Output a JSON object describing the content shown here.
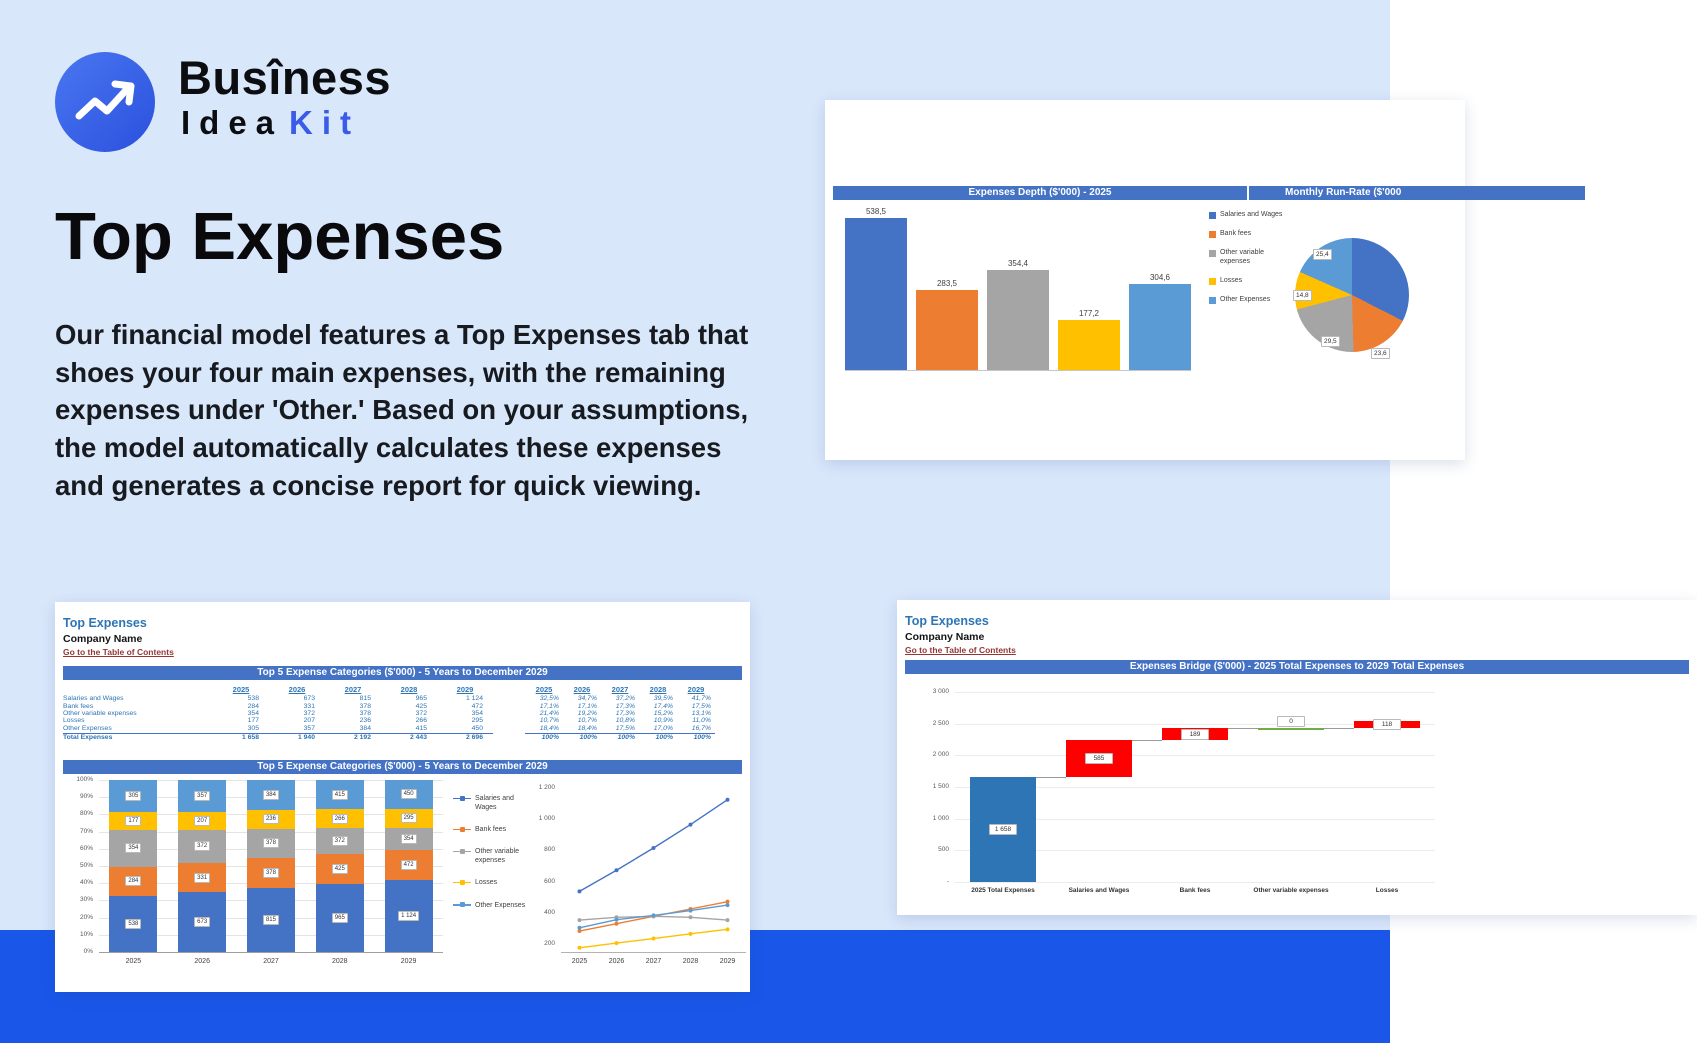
{
  "logo": {
    "brand_line1": "Busîness",
    "brand_line2_a": "Idea",
    "brand_line2_b": "Kit",
    "accent_color": "#3A5BE9"
  },
  "hero": {
    "title": "Top Expenses",
    "description": "Our financial model features a Top Expenses tab that shoes your four main expenses, with the remaining expenses under 'Other.' Based on your assumptions, the model automatically calculates these expenses and generates a concise report for quick viewing."
  },
  "colors": {
    "page_bg": "#D9E7FB",
    "band": "#1A57E9",
    "excel_header": "#4472C4",
    "sheet_title": "#2E75B6",
    "link": "#943634",
    "waterfall_base": "#2E75B6",
    "waterfall_increase": "#FF0000",
    "waterfall_zero": "#70AD47"
  },
  "series": [
    {
      "name": "Salaries and Wages",
      "color": "#4472C4"
    },
    {
      "name": "Bank fees",
      "color": "#ED7D31"
    },
    {
      "name": "Other variable expenses",
      "color": "#A5A5A5"
    },
    {
      "name": "Losses",
      "color": "#FFC000"
    },
    {
      "name": "Other Expenses",
      "color": "#5B9BD5"
    }
  ],
  "depth_card": {
    "header_left": "Expenses Depth ($'000) - 2025",
    "header_right": "Monthly Run-Rate ($'000"
  },
  "table_card": {
    "sheet_title": "Top Expenses",
    "company": "Company Name",
    "toc_link": "Go to the Table of Contents",
    "table_header": "Top 5 Expense Categories ($'000) - 5 Years to December 2029",
    "chart_header": "Top 5 Expense Categories ($'000) - 5 Years to December 2029",
    "years": [
      "2025",
      "2026",
      "2027",
      "2028",
      "2029"
    ],
    "rows": [
      {
        "label": "Salaries and Wages",
        "values": [
          "538",
          "673",
          "815",
          "965",
          "1 124"
        ],
        "pcts": [
          "32,5%",
          "34,7%",
          "37,2%",
          "39,5%",
          "41,7%"
        ]
      },
      {
        "label": "Bank fees",
        "values": [
          "284",
          "331",
          "378",
          "425",
          "472"
        ],
        "pcts": [
          "17,1%",
          "17,1%",
          "17,3%",
          "17,4%",
          "17,5%"
        ]
      },
      {
        "label": "Other variable expenses",
        "values": [
          "354",
          "372",
          "378",
          "372",
          "354"
        ],
        "pcts": [
          "21,4%",
          "19,2%",
          "17,3%",
          "15,2%",
          "13,1%"
        ]
      },
      {
        "label": "Losses",
        "values": [
          "177",
          "207",
          "236",
          "266",
          "295"
        ],
        "pcts": [
          "10,7%",
          "10,7%",
          "10,8%",
          "10,9%",
          "11,0%"
        ]
      },
      {
        "label": "Other Expenses",
        "values": [
          "305",
          "357",
          "384",
          "415",
          "450"
        ],
        "pcts": [
          "18,4%",
          "18,4%",
          "17,5%",
          "17,0%",
          "16,7%"
        ]
      }
    ],
    "total_row": {
      "label": "Total Expenses",
      "values": [
        "1 658",
        "1 940",
        "2 192",
        "2 443",
        "2 696"
      ],
      "pcts": [
        "100%",
        "100%",
        "100%",
        "100%",
        "100%"
      ]
    },
    "stacked_y_ticks": [
      "100%",
      "90%",
      "80%",
      "70%",
      "60%",
      "50%",
      "40%",
      "30%",
      "20%",
      "10%",
      "0%"
    ],
    "line_y_ticks": [
      "1 200",
      "1 000",
      "800",
      "600",
      "400",
      "200"
    ]
  },
  "bridge_card": {
    "sheet_title": "Top Expenses",
    "company": "Company Name",
    "toc_link": "Go to the Table of Contents",
    "header": "Expenses Bridge ($'000) - 2025 Total Expenses to 2029 Total Expenses",
    "x_labels": [
      "2025 Total Expenses",
      "Salaries and Wages",
      "Bank fees",
      "Other variable expenses",
      "Losses"
    ]
  },
  "chart_data": [
    {
      "id": "expenses-depth-bar",
      "type": "bar",
      "title": "Expenses Depth ($'000) - 2025",
      "categories": [
        "Salaries and Wages",
        "Bank fees",
        "Other variable expenses",
        "Losses",
        "Other Expenses"
      ],
      "values": [
        538.5,
        283.5,
        354.4,
        177.2,
        304.6
      ],
      "data_labels": [
        "538,5",
        "283,5",
        "354,4",
        "177,2",
        "304,6"
      ],
      "legend_position": "right",
      "grid": false
    },
    {
      "id": "monthly-run-rate-pie",
      "type": "pie",
      "title": "Monthly Run-Rate ($'000",
      "categories": [
        "Salaries and Wages",
        "Bank fees",
        "Other variable expenses",
        "Losses",
        "Other Expenses"
      ],
      "values": [
        44.9,
        23.6,
        29.5,
        14.8,
        25.4
      ],
      "visible_labels": [
        "25,4",
        "14,8",
        "29,5",
        "23,6"
      ]
    },
    {
      "id": "stacked-100",
      "type": "bar",
      "stacked": true,
      "title": "Top 5 Expense Categories ($'000) - 5 Years to December 2029",
      "categories": [
        "2025",
        "2026",
        "2027",
        "2028",
        "2029"
      ],
      "series": [
        {
          "name": "Salaries and Wages",
          "values": [
            538,
            673,
            815,
            965,
            1124
          ]
        },
        {
          "name": "Bank fees",
          "values": [
            284,
            331,
            378,
            425,
            472
          ]
        },
        {
          "name": "Other variable expenses",
          "values": [
            354,
            372,
            378,
            372,
            354
          ]
        },
        {
          "name": "Losses",
          "values": [
            177,
            207,
            236,
            266,
            295
          ]
        },
        {
          "name": "Other Expenses",
          "values": [
            305,
            357,
            384,
            415,
            450
          ]
        }
      ],
      "totals": [
        1658,
        1940,
        2192,
        2443,
        2696
      ],
      "ylabel": "%",
      "ylim": [
        0,
        100
      ],
      "grid": true
    },
    {
      "id": "expenses-line",
      "type": "line",
      "categories": [
        "2025",
        "2026",
        "2027",
        "2028",
        "2029"
      ],
      "series": [
        {
          "name": "Salaries and Wages",
          "values": [
            538,
            673,
            815,
            965,
            1124
          ]
        },
        {
          "name": "Bank fees",
          "values": [
            284,
            331,
            378,
            425,
            472
          ]
        },
        {
          "name": "Other variable expenses",
          "values": [
            354,
            372,
            378,
            372,
            354
          ]
        },
        {
          "name": "Losses",
          "values": [
            177,
            207,
            236,
            266,
            295
          ]
        },
        {
          "name": "Other Expenses",
          "values": [
            305,
            357,
            384,
            415,
            450
          ]
        }
      ],
      "ylim": [
        150,
        1250
      ],
      "y_ticks": [
        1200,
        1000,
        800,
        600,
        400,
        200
      ],
      "grid": false
    },
    {
      "id": "expenses-bridge",
      "type": "waterfall",
      "title": "Expenses Bridge ($'000) - 2025 Total Expenses to 2029 Total Expenses",
      "categories": [
        "2025 Total Expenses",
        "Salaries and Wages",
        "Bank fees",
        "Other variable expenses",
        "Losses"
      ],
      "bars": [
        {
          "label": "2025 Total Expenses",
          "start": 0,
          "end": 1658,
          "display": "1 658",
          "kind": "base"
        },
        {
          "label": "Salaries and Wages",
          "start": 1658,
          "end": 2243,
          "display": "585",
          "kind": "increase"
        },
        {
          "label": "Bank fees",
          "start": 2243,
          "end": 2432,
          "display": "189",
          "kind": "increase"
        },
        {
          "label": "Other variable expenses",
          "start": 2432,
          "end": 2432,
          "display": "0",
          "kind": "zero"
        },
        {
          "label": "Losses",
          "start": 2432,
          "end": 2550,
          "display": "118",
          "kind": "increase"
        }
      ],
      "ylim": [
        0,
        3000
      ],
      "y_tick_labels": [
        "3 000",
        "2 500",
        "2 000",
        "1 500",
        "1 000",
        "500",
        "-"
      ],
      "grid": true
    }
  ]
}
